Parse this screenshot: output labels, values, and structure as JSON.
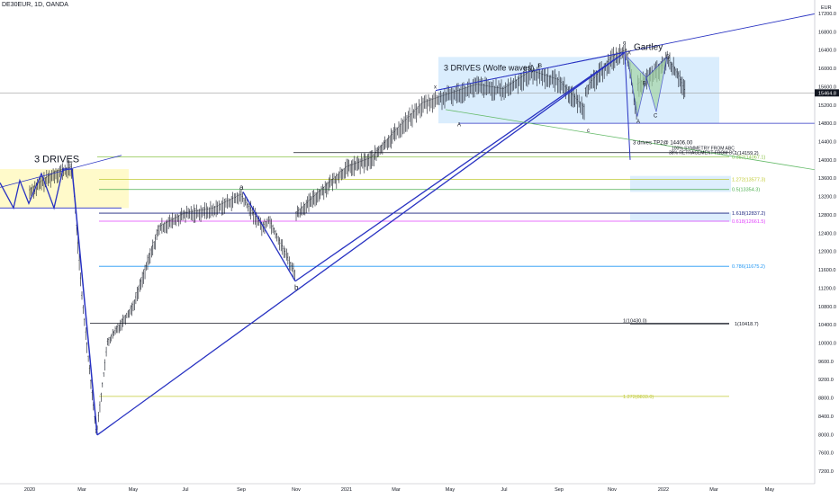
{
  "header": {
    "symbol": "DE30EUR, 1D, OANDA"
  },
  "chart_data": {
    "type": "candlestick",
    "currency": "EUR",
    "last_price": "15464.8",
    "y_ticks": [
      "17200.0",
      "16800.0",
      "16400.0",
      "16000.0",
      "15600.0",
      "15200.0",
      "14800.0",
      "14400.0",
      "14000.0",
      "13600.0",
      "13200.0",
      "12800.0",
      "12400.0",
      "12000.0",
      "11600.0",
      "11200.0",
      "10800.0",
      "10400.0",
      "10000.0",
      "9600.0",
      "9200.0",
      "8800.0",
      "8400.0",
      "8000.0",
      "7600.0",
      "7200.0"
    ],
    "x_ticks": [
      "2020",
      "Mar",
      "May",
      "Jul",
      "Sep",
      "Nov",
      "2021",
      "Mar",
      "May",
      "Jul",
      "Sep",
      "Nov",
      "2022",
      "Mar",
      "May"
    ],
    "ylim": [
      7000,
      17400
    ],
    "price_path": [
      [
        "2020-01",
        13300
      ],
      [
        "2020-02",
        13700
      ],
      [
        "2020-02-20",
        13800
      ],
      [
        "2020-03",
        11000
      ],
      [
        "2020-03-18",
        8000
      ],
      [
        "2020-04",
        10000
      ],
      [
        "2020-05",
        10800
      ],
      [
        "2020-06",
        12500
      ],
      [
        "2020-07",
        12800
      ],
      [
        "2020-08",
        12900
      ],
      [
        "2020-09",
        13200
      ],
      [
        "2020-09-25",
        12500
      ],
      [
        "2020-10",
        12700
      ],
      [
        "2020-10-30",
        11500
      ],
      [
        "2020-11",
        12800
      ],
      [
        "2020-12",
        13300
      ],
      [
        "2021-01",
        13800
      ],
      [
        "2021-02",
        14000
      ],
      [
        "2021-03",
        14600
      ],
      [
        "2021-04",
        15200
      ],
      [
        "2021-05",
        15400
      ],
      [
        "2021-06",
        15600
      ],
      [
        "2021-07",
        15500
      ],
      [
        "2021-08",
        15900
      ],
      [
        "2021-09",
        15700
      ],
      [
        "2021-09-30",
        15100
      ],
      [
        "2021-10",
        15500
      ],
      [
        "2021-11",
        16200
      ],
      [
        "2021-11-18",
        16350
      ],
      [
        "2021-11-30",
        15000
      ],
      [
        "2021-12",
        15600
      ],
      [
        "2021-12-29",
        16000
      ],
      [
        "2022-01-05",
        16200
      ],
      [
        "2022-01-20",
        15800
      ],
      [
        "2022-01-27",
        15464
      ]
    ],
    "annotations": {
      "three_drives_left": "3 DRIVES",
      "three_drives_wolfe": "3 DRIVES (Wolfe waves)",
      "gartley": "Gartley",
      "tp_text": "3 drives TP2@ 14406.00",
      "symmetry_text_1": "100% SYMMETRY FROM ABC",
      "symmetry_text_2": "38% RETRACEMENT FROM BC",
      "point_labels": [
        "a",
        "b",
        "X",
        "A",
        "B",
        "C",
        "D",
        "c",
        "c",
        "A",
        "B",
        "x"
      ]
    },
    "fib_levels": [
      {
        "label": "1(14159.2)",
        "value": 14159.2,
        "color": "#131722"
      },
      {
        "label": "0.382(14067.1)",
        "value": 14067.1,
        "color": "#8bc34a"
      },
      {
        "label": "1.272(13577.3)",
        "value": 13577.3,
        "color": "#c0ca33"
      },
      {
        "label": "0.5(13354.3)",
        "value": 13354.3,
        "color": "#4caf50"
      },
      {
        "label": "1.618(12837.2)",
        "value": 12837.2,
        "color": "#1a237e"
      },
      {
        "label": "0.618(12661.5)",
        "value": 12661.5,
        "color": "#e040fb"
      },
      {
        "label": "0.786(11675.2)",
        "value": 11675.2,
        "color": "#2196f3"
      },
      {
        "label": "1(10430.0)",
        "value": 10430.0,
        "color": "#131722"
      },
      {
        "label": "1(10418.7)",
        "value": 10418.7,
        "color": "#131722"
      },
      {
        "label": "1.272(8833.0)",
        "value": 8833.0,
        "color": "#c0ca33"
      }
    ],
    "colors": {
      "trend": "#2832c2",
      "candle": "#131722",
      "box_blue": "#bbdefb",
      "box_yellow": "#fff9c4",
      "harmonic_fill": "#a5d6a7"
    }
  }
}
